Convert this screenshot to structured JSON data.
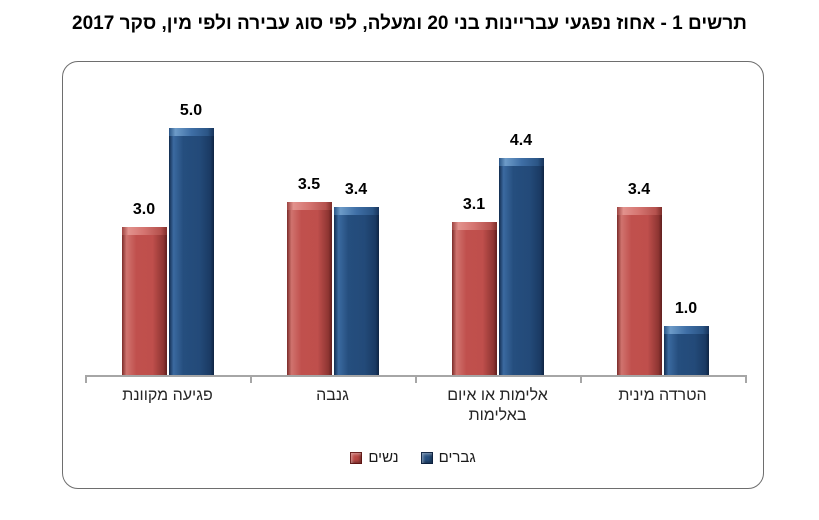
{
  "title": "תרשים 1 - אחוז נפגעי עבריינות בני 20 ומעלה, לפי סוג עבירה ולפי מין, סקר 2017",
  "chart_data": {
    "type": "bar",
    "title": "תרשים 1 - אחוז נפגעי עבריינות בני 20 ומעלה, לפי סוג עבירה ולפי מין, סקר 2017",
    "direction": "rtl",
    "categories": [
      "פגיעה מקוונת",
      "גנבה",
      "אלימות או איום באלימות",
      "הטרדה מינית"
    ],
    "series": [
      {
        "key": "women",
        "name": "נשים",
        "color": "#c0504d",
        "values": [
          3.0,
          3.5,
          3.1,
          3.4
        ],
        "labels": [
          "3.0",
          "3.5",
          "3.1",
          "3.4"
        ]
      },
      {
        "key": "men",
        "name": "גברים",
        "color": "#254e7e",
        "values": [
          5.0,
          3.4,
          4.4,
          1.0
        ],
        "labels": [
          "5.0",
          "3.4",
          "4.4",
          "1.0"
        ]
      }
    ],
    "ylim": [
      0,
      5
    ],
    "xlabel": "",
    "ylabel": "",
    "grid": false,
    "value_labels": true,
    "legend_position": "bottom",
    "axis_color": "#a6a6a6",
    "frame_border_color": "#6e6e6e"
  }
}
